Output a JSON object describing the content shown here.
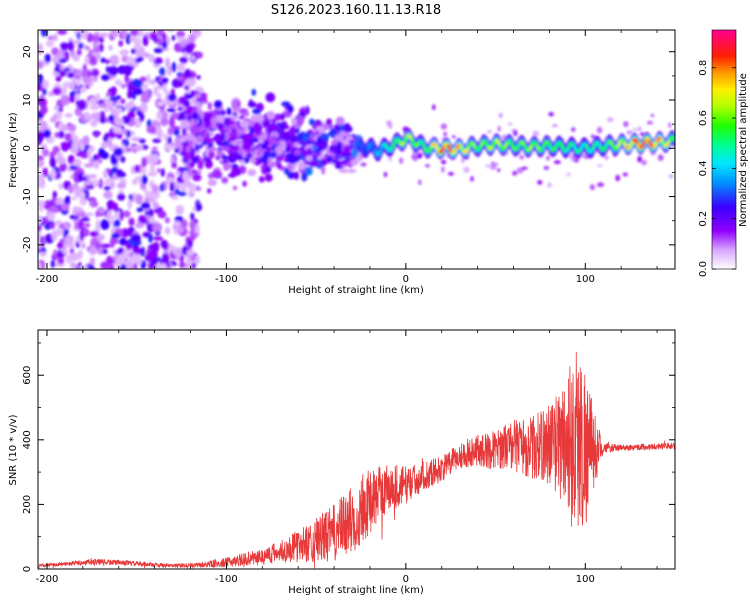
{
  "figure_title": "S126.2023.160.11.13.R18",
  "colors": {
    "snr_line": "#e8393a",
    "ridge_peak": "#ff2a10"
  },
  "chart_data": [
    {
      "type": "heatmap",
      "title": "S126.2023.160.11.13.R18",
      "xlabel": "Height of straight line (km)",
      "ylabel": "Frequency (Hz)",
      "xlim": [
        -205,
        150
      ],
      "ylim": [
        -25,
        24.5
      ],
      "x_ticks": [
        -200,
        -100,
        0,
        100
      ],
      "y_ticks": [
        -20,
        -10,
        0,
        10,
        20
      ],
      "x_tick_labels": [
        "-200",
        "-100",
        "0",
        "100"
      ],
      "y_tick_labels": [
        "-20",
        "-10",
        "0",
        "10",
        "20"
      ],
      "colorbar": {
        "label": "Normalized spectral amplitude",
        "range": [
          0,
          0.95
        ],
        "ticks": [
          0,
          0.2,
          0.4,
          0.6,
          0.8
        ],
        "tick_labels": [
          "0.0",
          "0.2",
          "0.4",
          "0.6",
          "0.8"
        ],
        "colormap": "rainbow (white-violet-blue-cyan-green-yellow-red-magenta)"
      },
      "description_points": {
        "noise_region_x": [
          -205,
          -120
        ],
        "transition_region_x": [
          -120,
          -25
        ],
        "signal_region_x": [
          -25,
          150
        ],
        "ridge": {
          "x": [
            -25,
            -15,
            -5,
            0,
            5,
            10,
            20,
            30,
            40,
            50,
            60,
            70,
            80,
            90,
            100,
            110,
            120,
            130,
            140,
            150
          ],
          "y": [
            0.5,
            -0.5,
            1.0,
            2.0,
            1.5,
            0.2,
            0.0,
            -0.2,
            0.5,
            0.8,
            0.6,
            0.3,
            0.5,
            0.2,
            0.0,
            0.5,
            0.8,
            1.0,
            1.2,
            1.5
          ],
          "amplitude": [
            0.3,
            0.4,
            0.6,
            0.7,
            0.65,
            0.55,
            0.9,
            0.8,
            0.6,
            0.7,
            0.6,
            0.65,
            0.6,
            0.55,
            0.5,
            0.55,
            0.7,
            0.92,
            0.85,
            0.6
          ]
        }
      }
    },
    {
      "type": "line",
      "title": "",
      "xlabel": "Height of straight line (km)",
      "ylabel": "SNR (10 * v/v)",
      "xlim": [
        -205,
        150
      ],
      "ylim": [
        0,
        740
      ],
      "x_ticks": [
        -200,
        -100,
        0,
        100
      ],
      "y_ticks": [
        0,
        200,
        400,
        600
      ],
      "x_tick_labels": [
        "-200",
        "-100",
        "0",
        "100"
      ],
      "y_tick_labels": [
        "0",
        "200",
        "400",
        "600"
      ],
      "series": [
        {
          "name": "SNR",
          "x": [
            -205,
            -190,
            -175,
            -160,
            -145,
            -130,
            -115,
            -100,
            -90,
            -80,
            -70,
            -60,
            -50,
            -40,
            -35,
            -30,
            -25,
            -20,
            -15,
            -10,
            -5,
            0,
            5,
            10,
            15,
            20,
            25,
            30,
            35,
            40,
            45,
            50,
            55,
            60,
            65,
            70,
            75,
            80,
            85,
            90,
            95,
            100,
            105,
            110,
            120,
            130,
            140,
            150
          ],
          "y": [
            10,
            15,
            22,
            20,
            15,
            10,
            12,
            20,
            30,
            40,
            55,
            70,
            90,
            110,
            130,
            150,
            180,
            210,
            230,
            250,
            255,
            260,
            275,
            290,
            300,
            310,
            330,
            350,
            360,
            370,
            365,
            370,
            380,
            385,
            380,
            375,
            380,
            390,
            390,
            390,
            400,
            380,
            370,
            375,
            375,
            378,
            380,
            380
          ],
          "noise_amplitude": [
            5,
            6,
            10,
            8,
            7,
            6,
            8,
            15,
            20,
            25,
            35,
            50,
            70,
            90,
            100,
            110,
            110,
            100,
            90,
            80,
            70,
            60,
            50,
            45,
            45,
            40,
            40,
            40,
            45,
            50,
            55,
            60,
            70,
            80,
            90,
            100,
            110,
            130,
            160,
            240,
            300,
            260,
            120,
            15,
            10,
            10,
            10,
            10
          ]
        }
      ]
    }
  ]
}
